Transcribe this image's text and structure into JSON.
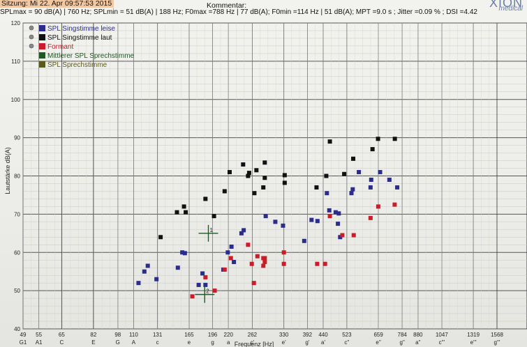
{
  "header": {
    "session": "Sitzung: Mi 22. Apr 09:57:53 2015",
    "summary": "SPLmax = 90 dB(A) | 760 Hz; SPLmin = 51 dB(A) | 188 Hz; F0max =788 Hz | 77 dB(A); F0min =114 Hz | 51 dB(A); MPT =9.0 s ; Jitter =0.09 % ; DSI =4.42",
    "comment": "Kommentar:",
    "logo": "XION",
    "logo_sub": "medical"
  },
  "colors": {
    "leise": "#2b2d8c",
    "laut": "#111111",
    "formant": "#c81e2a",
    "mittlerer": "#1f5a24",
    "sprech": "#5a5a1c"
  },
  "chart_data": {
    "type": "scatter",
    "title": "",
    "ylabel": "Lautstärke  dB(A)",
    "xlabel": "Frequenz [Hz]",
    "xscale": "log",
    "xlim": [
      49,
      1568
    ],
    "ylim": [
      40,
      120
    ],
    "yticks": [
      40,
      50,
      60,
      70,
      80,
      90,
      100,
      110,
      120
    ],
    "xticks": [
      {
        "hz": 49,
        "label": "49",
        "note": "G1"
      },
      {
        "hz": 55,
        "label": "55",
        "note": "A1"
      },
      {
        "hz": 65,
        "label": "65",
        "note": "C"
      },
      {
        "hz": 82,
        "label": "82",
        "note": "E"
      },
      {
        "hz": 98,
        "label": "98",
        "note": "G"
      },
      {
        "hz": 110,
        "label": "110",
        "note": "A"
      },
      {
        "hz": 131,
        "label": "131",
        "note": "c"
      },
      {
        "hz": 165,
        "label": "165",
        "note": "e"
      },
      {
        "hz": 196,
        "label": "196",
        "note": "g"
      },
      {
        "hz": 220,
        "label": "220",
        "note": "a"
      },
      {
        "hz": 262,
        "label": "262",
        "note": "c'"
      },
      {
        "hz": 330,
        "label": "330",
        "note": "e'"
      },
      {
        "hz": 392,
        "label": "392",
        "note": "g'"
      },
      {
        "hz": 440,
        "label": "440",
        "note": "a'"
      },
      {
        "hz": 523,
        "label": "523",
        "note": "c''"
      },
      {
        "hz": 659,
        "label": "659",
        "note": "e''"
      },
      {
        "hz": 784,
        "label": "784",
        "note": "g''"
      },
      {
        "hz": 880,
        "label": "880",
        "note": "a''"
      },
      {
        "hz": 1047,
        "label": "1047",
        "note": "c'''"
      },
      {
        "hz": 1319,
        "label": "1319",
        "note": "e'''"
      },
      {
        "hz": 1568,
        "label": "1568",
        "note": "g'''"
      }
    ],
    "grid": true,
    "legend_position": "top-left",
    "legend": [
      {
        "label": "SPL Singstimme leise",
        "color_key": "leise",
        "icon": "speaker-icon"
      },
      {
        "label": "SPL Singstimme laut",
        "color_key": "laut",
        "icon": "speaker-icon"
      },
      {
        "label": "Formant",
        "color_key": "formant",
        "icon": "speaker-icon"
      },
      {
        "label": "Mittlerer SPL Sprechstimme",
        "color_key": "mittlerer",
        "icon": ""
      },
      {
        "label": "SPL Sprechstimme",
        "color_key": "sprech",
        "icon": ""
      }
    ],
    "markers": [
      {
        "label": "1",
        "x": 190,
        "y": 65,
        "color_key": "mittlerer"
      },
      {
        "label": "2",
        "x": 185,
        "y": 49,
        "color_key": "mittlerer"
      }
    ],
    "series": [
      {
        "name": "SPL Singstimme leise",
        "color_key": "leise",
        "points": [
          [
            114,
            52
          ],
          [
            119,
            55
          ],
          [
            122,
            56.5
          ],
          [
            130,
            53
          ],
          [
            152,
            56
          ],
          [
            157,
            60
          ],
          [
            160,
            59.8
          ],
          [
            177,
            51.5
          ],
          [
            182,
            54.5
          ],
          [
            186,
            51.5
          ],
          [
            212,
            55.5
          ],
          [
            219,
            60
          ],
          [
            225,
            61.5
          ],
          [
            229,
            57.5
          ],
          [
            242,
            65
          ],
          [
            246,
            65.8
          ],
          [
            289,
            69.5
          ],
          [
            310,
            68
          ],
          [
            328,
            67
          ],
          [
            383,
            63
          ],
          [
            404,
            68.5
          ],
          [
            422,
            68.2
          ],
          [
            452,
            75.5
          ],
          [
            460,
            71
          ],
          [
            482,
            70.5
          ],
          [
            490,
            67.5
          ],
          [
            493,
            70.2
          ],
          [
            498,
            64
          ],
          [
            541,
            75.5
          ],
          [
            546,
            76.5
          ],
          [
            571,
            81
          ],
          [
            622,
            77
          ],
          [
            625,
            79
          ],
          [
            667,
            81
          ],
          [
            714,
            79
          ],
          [
            756,
            77
          ]
        ]
      },
      {
        "name": "SPL Singstimme laut",
        "color_key": "laut",
        "points": [
          [
            134,
            64
          ],
          [
            151,
            70.5
          ],
          [
            159,
            72
          ],
          [
            161,
            70.5
          ],
          [
            186,
            74
          ],
          [
            198,
            69.5
          ],
          [
            214,
            76
          ],
          [
            222,
            81
          ],
          [
            245,
            83
          ],
          [
            254,
            80
          ],
          [
            256,
            80.8
          ],
          [
            266,
            75.5
          ],
          [
            270,
            81.5
          ],
          [
            284,
            77
          ],
          [
            287,
            83.5
          ],
          [
            287,
            79.5
          ],
          [
            332,
            80.2
          ],
          [
            332,
            78.2
          ],
          [
            419,
            77
          ],
          [
            450,
            80
          ],
          [
            462,
            89
          ],
          [
            513,
            80.5
          ],
          [
            548,
            84.5
          ],
          [
            631,
            87
          ],
          [
            657,
            89.7
          ],
          [
            743,
            89.7
          ]
        ]
      },
      {
        "name": "Formant",
        "color_key": "formant",
        "points": [
          [
            169,
            48.5
          ],
          [
            186,
            53.5
          ],
          [
            199,
            50
          ],
          [
            214,
            55.5
          ],
          [
            224,
            58.5
          ],
          [
            254,
            62
          ],
          [
            261,
            57
          ],
          [
            265,
            52
          ],
          [
            272,
            59
          ],
          [
            284,
            58.5
          ],
          [
            284,
            56.5
          ],
          [
            287,
            57.5
          ],
          [
            287,
            58.5
          ],
          [
            330,
            60
          ],
          [
            330,
            57
          ],
          [
            421,
            57
          ],
          [
            446,
            57
          ],
          [
            462,
            69.5
          ],
          [
            506,
            64.5
          ],
          [
            550,
            64.5
          ],
          [
            622,
            69
          ],
          [
            658,
            72
          ],
          [
            742,
            72.5
          ]
        ]
      }
    ]
  }
}
